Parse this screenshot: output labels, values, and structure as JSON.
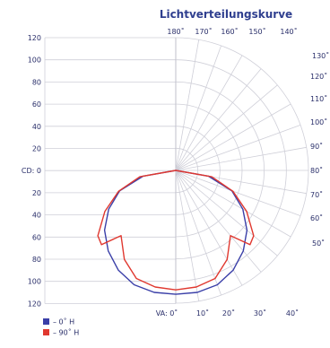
{
  "chart_data": {
    "type": "polar-area",
    "title": "Lichtverteilungskurve",
    "grid": true,
    "y_ticks_upper": [
      "120",
      "100",
      "80",
      "60",
      "40",
      "20",
      "CD: 0"
    ],
    "y_ticks_lower": [
      "20",
      "40",
      "60",
      "80",
      "100",
      "120"
    ],
    "top_angle_labels": [
      "180˚",
      "170˚",
      "160˚",
      "150˚",
      "140˚"
    ],
    "right_angle_labels": [
      "130˚",
      "120˚",
      "110˚",
      "100˚",
      "90˚",
      "80˚",
      "70˚",
      "60˚",
      "50˚"
    ],
    "bottom_angle_labels": [
      "VA: 0˚",
      "10˚",
      "20˚",
      "30˚",
      "40˚"
    ],
    "r_max": 120,
    "series": [
      {
        "name": "0˚ H",
        "color": "#3a3fa8",
        "points": [
          {
            "angle": 0,
            "cd": 112
          },
          {
            "angle": 10,
            "cd": 112
          },
          {
            "angle": 20,
            "cd": 110
          },
          {
            "angle": 30,
            "cd": 104
          },
          {
            "angle": 40,
            "cd": 95
          },
          {
            "angle": 50,
            "cd": 84
          },
          {
            "angle": 60,
            "cd": 70
          },
          {
            "angle": 70,
            "cd": 54
          },
          {
            "angle": 80,
            "cd": 30
          },
          {
            "angle": 90,
            "cd": 0
          }
        ]
      },
      {
        "name": "90˚ H",
        "color": "#e0382f",
        "points": [
          {
            "angle": 0,
            "cd": 108
          },
          {
            "angle": 10,
            "cd": 107
          },
          {
            "angle": 20,
            "cd": 104
          },
          {
            "angle": 30,
            "cd": 93
          },
          {
            "angle": 40,
            "cd": 77
          },
          {
            "angle": 45,
            "cd": 95
          },
          {
            "angle": 50,
            "cd": 92
          },
          {
            "angle": 60,
            "cd": 74
          },
          {
            "angle": 70,
            "cd": 55
          },
          {
            "angle": 80,
            "cd": 33
          },
          {
            "angle": 90,
            "cd": 0
          }
        ]
      }
    ]
  }
}
